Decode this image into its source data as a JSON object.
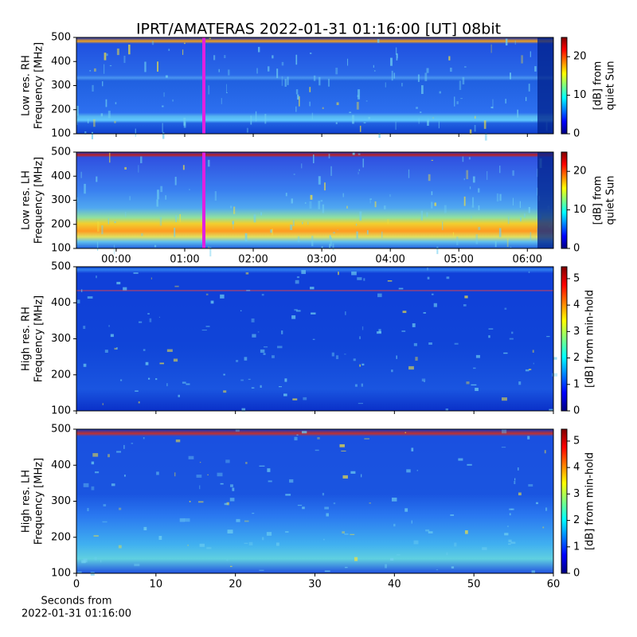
{
  "chart_data": [
    {
      "type": "spectrogram",
      "title": "IPRT/AMATERAS 2022-01-31 01:16:00 [UT]   08bit",
      "ylabel": [
        "Low res. RH",
        "Frequency [MHz]"
      ],
      "ylim": [
        100,
        500
      ],
      "yticks": [
        100,
        200,
        300,
        400,
        500
      ],
      "xlim": [
        -0.58,
        6.38
      ],
      "colorbar": {
        "label": [
          "[dB] from",
          "quiet Sun"
        ],
        "lim": [
          0,
          25
        ],
        "ticks": [
          0,
          10,
          20
        ]
      }
    },
    {
      "type": "spectrogram",
      "ylabel": [
        "Low res. LH",
        "Frequency [MHz]"
      ],
      "ylim": [
        100,
        500
      ],
      "yticks": [
        100,
        200,
        300,
        400,
        500
      ],
      "xlim": [
        -0.58,
        6.38
      ],
      "xticks": [
        {
          "value": 0,
          "label": "00:00"
        },
        {
          "value": 1,
          "label": "01:00"
        },
        {
          "value": 2,
          "label": "02:00"
        },
        {
          "value": 3,
          "label": "03:00"
        },
        {
          "value": 4,
          "label": "04:00"
        },
        {
          "value": 5,
          "label": "05:00"
        },
        {
          "value": 6,
          "label": "06:00"
        }
      ],
      "colorbar": {
        "label": [
          "[dB] from",
          "quiet Sun"
        ],
        "lim": [
          0,
          25
        ],
        "ticks": [
          0,
          10,
          20
        ]
      }
    },
    {
      "type": "spectrogram",
      "ylabel": [
        "High res. RH",
        "Frequency [MHz]"
      ],
      "ylim": [
        100,
        500
      ],
      "yticks": [
        100,
        200,
        300,
        400,
        500
      ],
      "xlim": [
        0,
        60
      ],
      "colorbar": {
        "label": [
          "[dB] from min-hold"
        ],
        "lim": [
          0,
          5.45
        ],
        "ticks": [
          0,
          1,
          2,
          3,
          4,
          5
        ]
      }
    },
    {
      "type": "spectrogram",
      "ylabel": [
        "High res. LH",
        "Frequency [MHz]"
      ],
      "ylim": [
        100,
        500
      ],
      "yticks": [
        100,
        200,
        300,
        400,
        500
      ],
      "xlim": [
        0,
        60
      ],
      "xticks": [
        0,
        10,
        20,
        30,
        40,
        50,
        60
      ],
      "xlabel": [
        "Seconds from",
        "2022-01-31 01:16:00"
      ],
      "colorbar": {
        "label": [
          "[dB] from min-hold"
        ],
        "lim": [
          0,
          5.45
        ],
        "ticks": [
          0,
          1,
          2,
          3,
          4,
          5
        ]
      }
    }
  ]
}
